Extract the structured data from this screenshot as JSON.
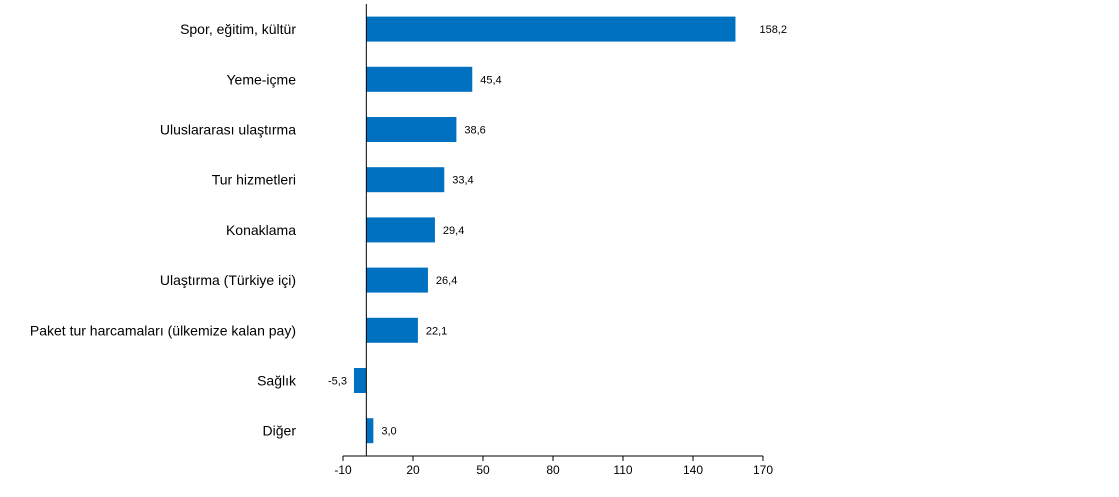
{
  "chart_data": {
    "type": "bar",
    "orientation": "horizontal",
    "categories": [
      "Spor, eğitim, kültür",
      "Yeme-içme",
      "Uluslararası ulaştırma",
      "Tur hizmetleri",
      "Konaklama",
      "Ulaştırma (Türkiye içi)",
      "Paket tur harcamaları (ülkemize kalan pay)",
      "Sağlık",
      "Diğer"
    ],
    "values": [
      158.2,
      45.4,
      38.6,
      33.4,
      29.4,
      26.4,
      22.1,
      -5.3,
      3.0
    ],
    "value_labels": [
      "158,2",
      "45,4",
      "38,6",
      "33,4",
      "29,4",
      "26,4",
      "22,1",
      "-5,3",
      "3,0"
    ],
    "xlim": [
      -10,
      170
    ],
    "xticks": [
      -10,
      20,
      50,
      80,
      110,
      140,
      170
    ],
    "xtick_labels": [
      "-10",
      "20",
      "50",
      "80",
      "110",
      "140",
      "170"
    ],
    "bar_color": "#0070C0",
    "grid": false,
    "legend": "none"
  }
}
